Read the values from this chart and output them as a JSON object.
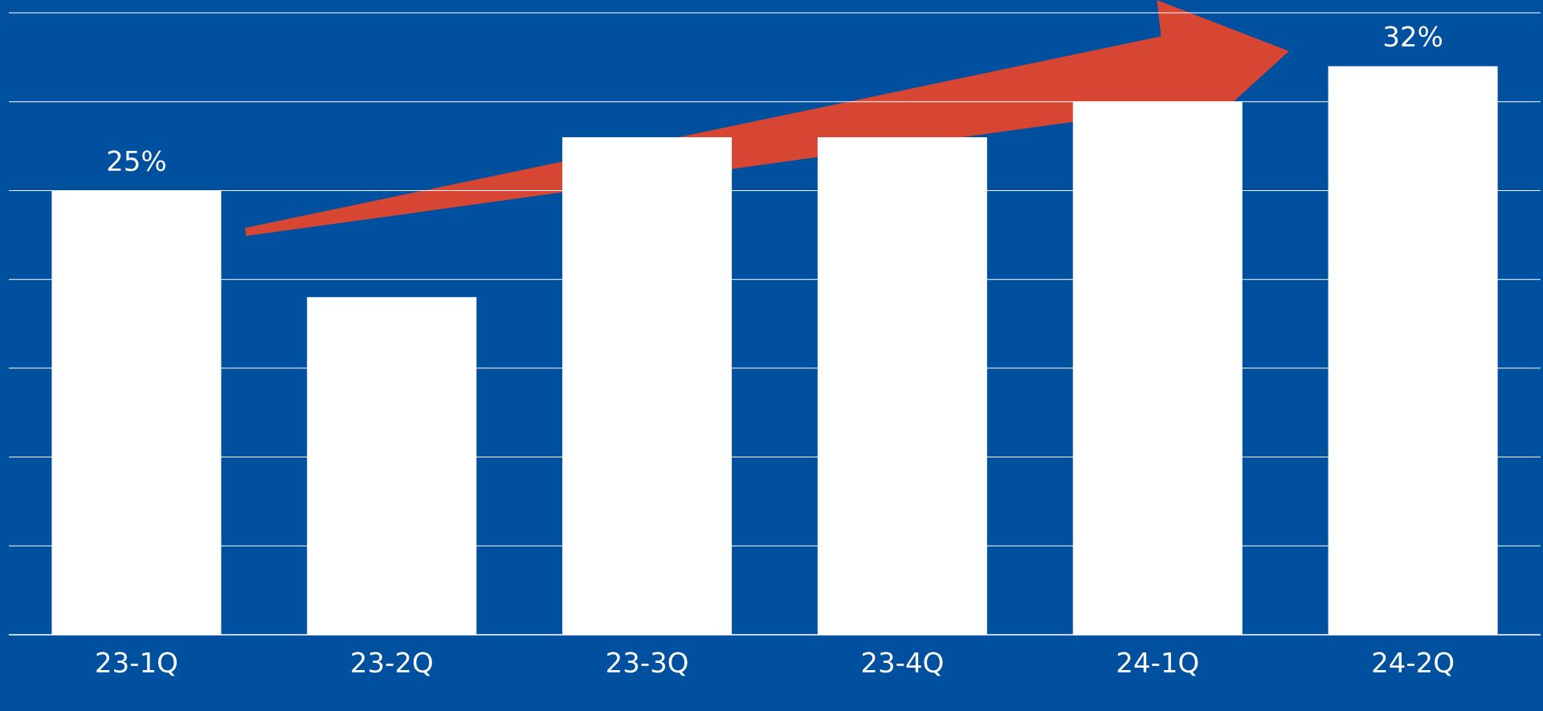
{
  "chart_data": {
    "type": "bar",
    "categories": [
      "23-1Q",
      "23-2Q",
      "23-3Q",
      "23-4Q",
      "24-1Q",
      "24-2Q"
    ],
    "values": [
      25,
      19,
      28,
      28,
      30,
      32
    ],
    "color": "#ffffff",
    "value_labels": [
      "25%",
      null,
      null,
      null,
      null,
      "32%"
    ],
    "ylim": [
      0,
      35
    ],
    "yticks": [
      {
        "value": 0,
        "label": null
      },
      {
        "value": 5,
        "label": null
      },
      {
        "value": 10,
        "label": null
      },
      {
        "value": 15,
        "label": null
      },
      {
        "value": 20,
        "label": null
      },
      {
        "value": 25,
        "label": null
      },
      {
        "value": 30,
        "label": null
      },
      {
        "value": 35,
        "label": null
      }
    ],
    "grid": "y",
    "tick_labels": "x"
  }
}
